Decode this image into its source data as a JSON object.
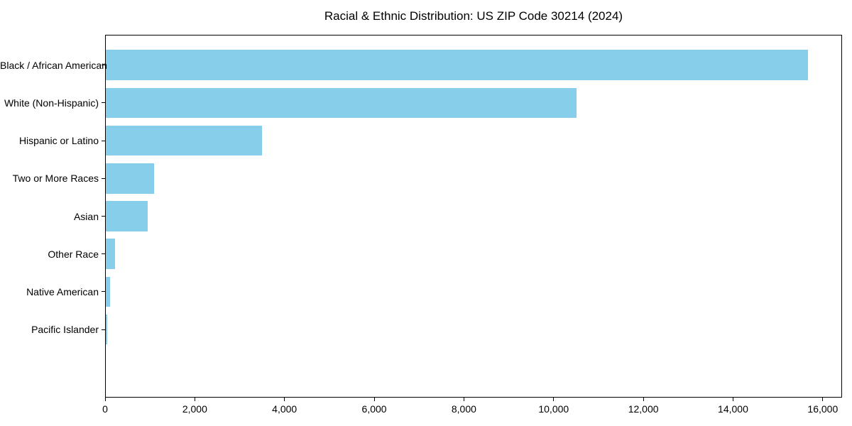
{
  "title": "Racial & Ethnic Distribution: US ZIP Code 30214 (2024)",
  "colors": {
    "bar": "#87CEEB",
    "axis": "#000000",
    "background": "#FFFFFF",
    "text": "#000000"
  },
  "chart_data": {
    "type": "bar",
    "orientation": "horizontal",
    "title": "Racial & Ethnic Distribution: US ZIP Code 30214 (2024)",
    "xlabel": "",
    "ylabel": "",
    "categories": [
      "Black / African American",
      "White (Non-Hispanic)",
      "Hispanic or Latino",
      "Two or More Races",
      "Asian",
      "Other Race",
      "Native American",
      "Pacific Islander"
    ],
    "values": [
      15650,
      10490,
      3480,
      1080,
      930,
      205,
      90,
      35
    ],
    "bar_color": "#87CEEB",
    "xlim": [
      0,
      16430
    ],
    "x_ticks": [
      0,
      2000,
      4000,
      6000,
      8000,
      10000,
      12000,
      14000,
      16000
    ],
    "x_tick_labels": [
      "0",
      "2,000",
      "4,000",
      "6,000",
      "8,000",
      "10,000",
      "12,000",
      "14,000",
      "16,000"
    ],
    "grid": false,
    "legend": null,
    "bar_height_fraction": 0.8
  }
}
